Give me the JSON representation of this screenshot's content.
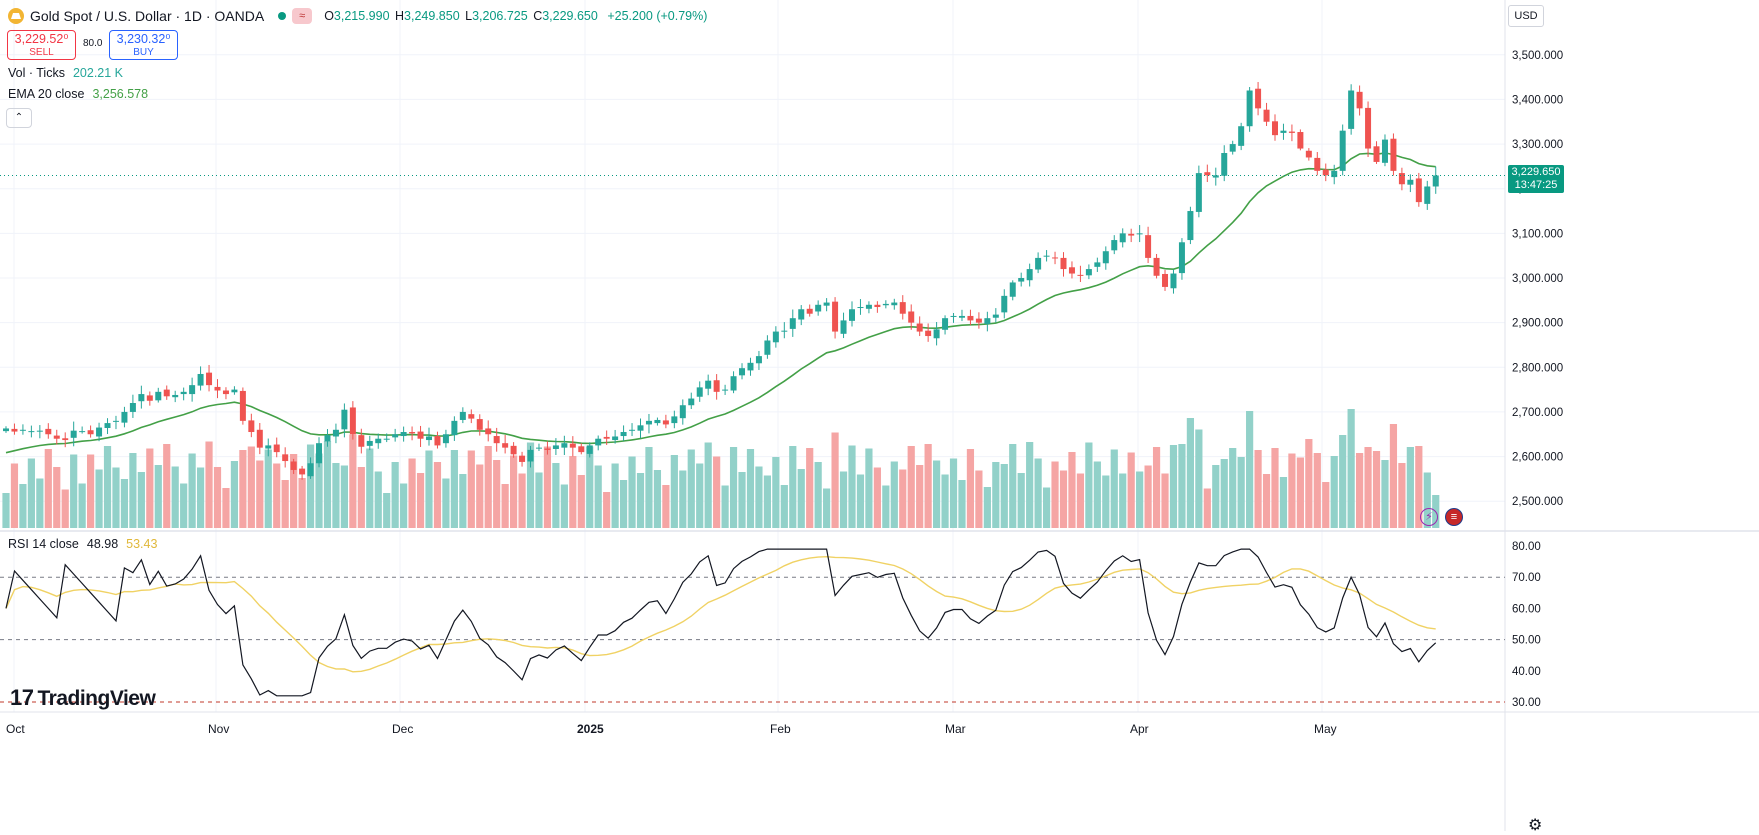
{
  "header": {
    "symbol_title": "Gold Spot / U.S. Dollar · 1D · OANDA",
    "ohlc": {
      "open_label": "O",
      "open": "3,215.990",
      "high_label": "H",
      "high": "3,249.850",
      "low_label": "L",
      "low": "3,206.725",
      "close_label": "C",
      "close": "3,229.650",
      "change": "+25.200 (+0.79%)"
    },
    "badge_symbol": "≈"
  },
  "trade": {
    "sell_price": "3,229.52⁰",
    "sell_label": "SELL",
    "spread": "80.0",
    "buy_price": "3,230.32⁰",
    "buy_label": "BUY"
  },
  "legend": {
    "volume_label": "Vol · Ticks",
    "volume_value": "202.21 K",
    "ema_label": "EMA 20 close",
    "ema_value": "3,256.578",
    "rsi_label": "RSI 14 close",
    "rsi_value": "48.98",
    "rsi_ma_value": "53.43",
    "collapse_symbol": "⌃"
  },
  "price_axis": {
    "currency": "USD",
    "last_price": "3,229.650",
    "countdown": "13:47:25"
  },
  "branding": {
    "logo_mark": "17",
    "logo_text": "TradingView"
  },
  "colors": {
    "up": "#26a69a",
    "down": "#ef5350",
    "vol_up": "#92d1c9",
    "vol_down": "#f5a5a4",
    "ema": "#43a047",
    "rsi": "#131722",
    "rsi_ma": "#f0d264",
    "last_price": "#089981"
  },
  "icons": [
    "gold-coin-icon",
    "market-open-dot-icon",
    "settings-gear-icon",
    "lightning-icon",
    "us-flag-icon"
  ],
  "chart_data": {
    "type": "candlestick",
    "timeframe": "1D",
    "x_labels": [
      "Oct",
      "Nov",
      "Dec",
      "2025",
      "Feb",
      "Mar",
      "Apr",
      "May"
    ],
    "y_ticks": [
      "2,500.000",
      "2,600.000",
      "2,700.000",
      "2,800.000",
      "2,900.000",
      "3,000.000",
      "3,100.000",
      "3,200.000",
      "3,300.000",
      "3,400.000",
      "3,500.000"
    ],
    "ylim": [
      2440,
      3560
    ],
    "closes": [
      2663,
      2656,
      2660,
      2657,
      2658,
      2650,
      2640,
      2637,
      2658,
      2657,
      2650,
      2665,
      2675,
      2680,
      2700,
      2720,
      2740,
      2725,
      2745,
      2735,
      2738,
      2745,
      2760,
      2785,
      2760,
      2748,
      2740,
      2750,
      2680,
      2655,
      2620,
      2625,
      2610,
      2590,
      2570,
      2560,
      2585,
      2630,
      2648,
      2660,
      2705,
      2650,
      2622,
      2635,
      2640,
      2640,
      2650,
      2655,
      2652,
      2640,
      2645,
      2625,
      2650,
      2680,
      2700,
      2685,
      2660,
      2650,
      2630,
      2620,
      2605,
      2588,
      2615,
      2620,
      2615,
      2625,
      2630,
      2620,
      2610,
      2625,
      2640,
      2640,
      2645,
      2655,
      2660,
      2670,
      2680,
      2682,
      2672,
      2690,
      2715,
      2730,
      2755,
      2770,
      2745,
      2750,
      2780,
      2798,
      2810,
      2825,
      2860,
      2880,
      2882,
      2910,
      2930,
      2920,
      2940,
      2945,
      2880,
      2905,
      2930,
      2935,
      2940,
      2935,
      2942,
      2945,
      2920,
      2900,
      2880,
      2870,
      2885,
      2910,
      2915,
      2915,
      2905,
      2900,
      2910,
      2918,
      2960,
      2990,
      3000,
      3020,
      3045,
      3050,
      3045,
      3020,
      3010,
      3005,
      3020,
      3035,
      3060,
      3085,
      3100,
      3095,
      3100,
      3045,
      3005,
      2980,
      3010,
      3080,
      3150,
      3235,
      3230,
      3230,
      3280,
      3300,
      3340,
      3420,
      3380,
      3350,
      3320,
      3330,
      3325,
      3290,
      3270,
      3240,
      3230,
      3240,
      3330,
      3420,
      3380,
      3290,
      3260,
      3310,
      3240,
      3210,
      3220,
      3170,
      3205,
      3229.65
    ],
    "ema20_last": 3256.578,
    "volume_last": "202.21 K",
    "rsi": {
      "period": 14,
      "ylim": [
        30,
        80
      ],
      "y_ticks": [
        "30.00",
        "40.00",
        "50.00",
        "60.00",
        "70.00",
        "80.00"
      ],
      "bands": [
        30,
        50,
        70
      ],
      "last": 48.98,
      "ma_last": 53.43
    }
  }
}
